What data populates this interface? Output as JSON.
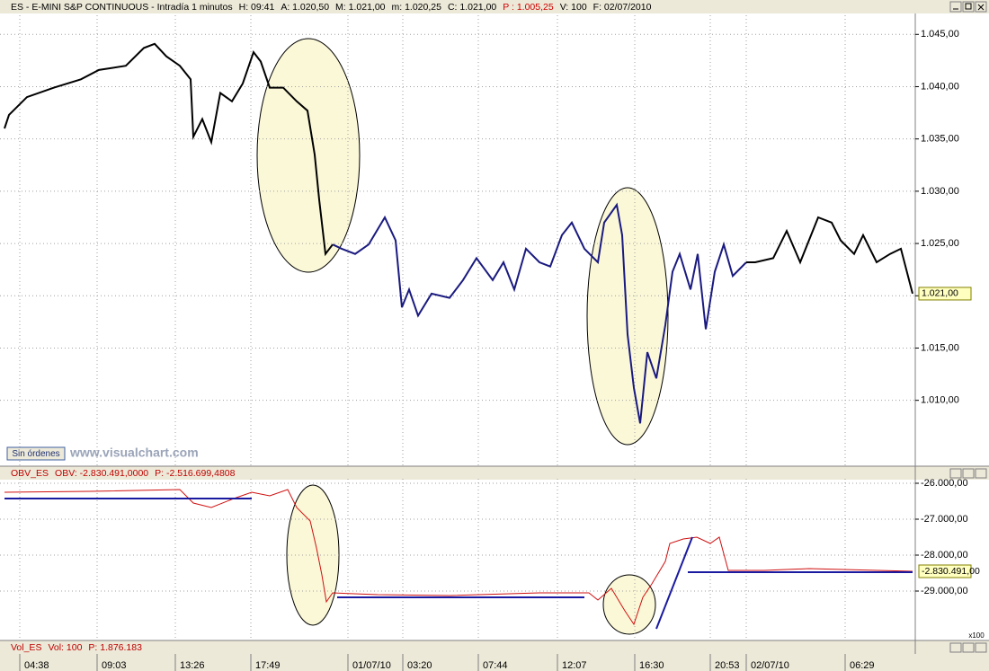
{
  "chart_data": [
    {
      "type": "line",
      "title": "ES - E-MINI S&P CONTINUOUS - Intradía 1 minutos",
      "stats": [
        {
          "text": "H: 09:41",
          "color": "#000000"
        },
        {
          "text": "A: 1.020,50",
          "color": "#000000"
        },
        {
          "text": "M: 1.021,00",
          "color": "#000000"
        },
        {
          "text": "m: 1.020,25",
          "color": "#000000"
        },
        {
          "text": "C: 1.021,00",
          "color": "#000000"
        },
        {
          "text": "P : 1.005,25",
          "color": "#d00000"
        },
        {
          "text": "V: 100",
          "color": "#000000"
        },
        {
          "text": "F: 02/07/2010",
          "color": "#000000"
        }
      ],
      "status": "Sin órdenes",
      "watermark": "www.visualchart.com",
      "last_label": "1.021,00",
      "xlim": [
        0,
        101.8
      ],
      "xticks": [
        {
          "value": 2.2,
          "label": "04:38"
        },
        {
          "value": 10.8,
          "label": "09:03"
        },
        {
          "value": 19.5,
          "label": "13:26"
        },
        {
          "value": 27.9,
          "label": "17:49"
        },
        {
          "value": 38.7,
          "label": "01/07/10"
        },
        {
          "value": 44.8,
          "label": "03:20"
        },
        {
          "value": 53.2,
          "label": "07:44"
        },
        {
          "value": 62.0,
          "label": "12:07"
        },
        {
          "value": 70.6,
          "label": "16:30"
        },
        {
          "value": 79.0,
          "label": "20:53"
        },
        {
          "value": 83.0,
          "label": "02/07/10"
        },
        {
          "value": 94.0,
          "label": "06:29"
        }
      ],
      "ylim": [
        1003.7,
        1047
      ],
      "yticks": [
        {
          "value": 1010,
          "label": "1.010,00"
        },
        {
          "value": 1015,
          "label": "1.015,00"
        },
        {
          "value": 1020,
          "label": "1.020,00"
        },
        {
          "value": 1025,
          "label": "1.025,00"
        },
        {
          "value": 1030,
          "label": "1.030,00"
        },
        {
          "value": 1035,
          "label": "1.035,00"
        },
        {
          "value": 1040,
          "label": "1.040,00"
        },
        {
          "value": 1045,
          "label": "1.045,00"
        }
      ],
      "series": [
        {
          "color": "#000000",
          "x": [
            0.5,
            1.0,
            3.0,
            6.0,
            9.0,
            11.0,
            14.0,
            16.0,
            17.2,
            18.5,
            20.0,
            21.2,
            21.5,
            22.5,
            23.5,
            24.5,
            25.8,
            27.0,
            28.2,
            29.0,
            30.0,
            31.5,
            33.0,
            34.2,
            35.0,
            35.5,
            36.2,
            37.0
          ],
          "values": [
            1036.0,
            1037.3,
            1039.0,
            1039.9,
            1040.7,
            1041.6,
            1042.0,
            1043.7,
            1044.1,
            1042.9,
            1042.0,
            1040.7,
            1035.2,
            1036.9,
            1034.7,
            1039.4,
            1038.6,
            1040.3,
            1043.3,
            1042.4,
            1039.9,
            1039.9,
            1038.6,
            1037.7,
            1033.5,
            1029.2,
            1024.0,
            1024.9
          ]
        },
        {
          "color": "#1a1a80",
          "x": [
            37.0,
            38.0,
            39.5,
            41.0,
            42.8,
            44.0,
            44.7,
            45.5,
            46.5,
            48.0,
            50.0,
            51.5,
            53.0,
            54.8,
            56.0,
            57.2,
            58.5,
            60.0,
            61.2,
            62.5,
            63.6,
            65.0,
            66.5,
            67.2,
            68.6,
            69.2,
            69.8,
            70.5,
            71.2,
            72.0,
            73.0,
            74.0,
            74.8,
            75.6,
            76.8,
            77.6,
            78.5,
            79.5,
            80.5,
            81.5,
            83.0
          ],
          "values": [
            1024.9,
            1024.5,
            1024.0,
            1024.9,
            1027.5,
            1025.3,
            1018.9,
            1020.6,
            1018.1,
            1020.2,
            1019.8,
            1021.5,
            1023.6,
            1021.5,
            1023.2,
            1020.6,
            1024.5,
            1023.2,
            1022.8,
            1025.8,
            1027.0,
            1024.5,
            1023.2,
            1027.0,
            1028.7,
            1025.8,
            1016.3,
            1011.2,
            1007.8,
            1014.6,
            1012.1,
            1017.2,
            1022.3,
            1024.0,
            1020.6,
            1024.0,
            1016.8,
            1022.3,
            1024.9,
            1021.9,
            1023.2
          ]
        },
        {
          "color": "#000000",
          "x": [
            83.0,
            84.0,
            86.0,
            87.5,
            89.0,
            91.0,
            92.5,
            93.5,
            95.0,
            96.0,
            97.5,
            99.0,
            100.2,
            101.5
          ],
          "values": [
            1023.2,
            1023.2,
            1023.6,
            1026.2,
            1023.2,
            1027.5,
            1027.0,
            1025.3,
            1024.0,
            1025.8,
            1023.2,
            1024.0,
            1024.5,
            1020.2
          ]
        }
      ]
    },
    {
      "type": "line",
      "title": "OBV_ES",
      "stats": [
        {
          "text": "OBV: -2.830.491,0000",
          "color": "#c00000"
        },
        {
          "text": "P: -2.516.699,4808",
          "color": "#c00000"
        }
      ],
      "last_label": "-2.830.491,00",
      "xlim": [
        0,
        101.8
      ],
      "ylim": [
        -30375,
        -25875
      ],
      "yticks": [
        {
          "value": -26000,
          "label": "-26.000,00"
        },
        {
          "value": -27000,
          "label": "-27.000,00"
        },
        {
          "value": -28000,
          "label": "-28.000,00"
        },
        {
          "value": -29000,
          "label": "-29.000,00"
        }
      ],
      "series": [
        {
          "color": "#d01010",
          "x": [
            0.5,
            10.0,
            20.0,
            21.5,
            23.5,
            26.0,
            28.0,
            30.0,
            32.0,
            33.0,
            34.5,
            35.2,
            35.8,
            36.3,
            37.0,
            42.0,
            50.0,
            60.0,
            65.5,
            66.5,
            68.0,
            69.5,
            70.5,
            71.5,
            72.5,
            74.0,
            74.5,
            76.0,
            77.5,
            79.0,
            80.0,
            81.0,
            85.0,
            90.0,
            101.5
          ],
          "values": [
            -26250,
            -26225,
            -26175,
            -26550,
            -26675,
            -26425,
            -26250,
            -26350,
            -26175,
            -26675,
            -27050,
            -27800,
            -28550,
            -29300,
            -29050,
            -29100,
            -29125,
            -29050,
            -29050,
            -29250,
            -28925,
            -29550,
            -29925,
            -29175,
            -28800,
            -28175,
            -27675,
            -27550,
            -27500,
            -27675,
            -27500,
            -28425,
            -28425,
            -28375,
            -28450
          ]
        },
        {
          "color": "#1a1aa0",
          "x": [
            0.5,
            28.0,
            null,
            37.5,
            65.0,
            null,
            73.0,
            77.0,
            null,
            76.5,
            101.5
          ],
          "values": [
            -26425,
            -26425,
            null,
            -29175,
            -29175,
            null,
            -30050,
            -27500,
            null,
            -28475,
            -28475
          ]
        }
      ]
    }
  ],
  "vol_panel": {
    "title": "Vol_ES",
    "stats": [
      "Vol: 100",
      "P: 1.876.183"
    ],
    "scale": "x100"
  }
}
